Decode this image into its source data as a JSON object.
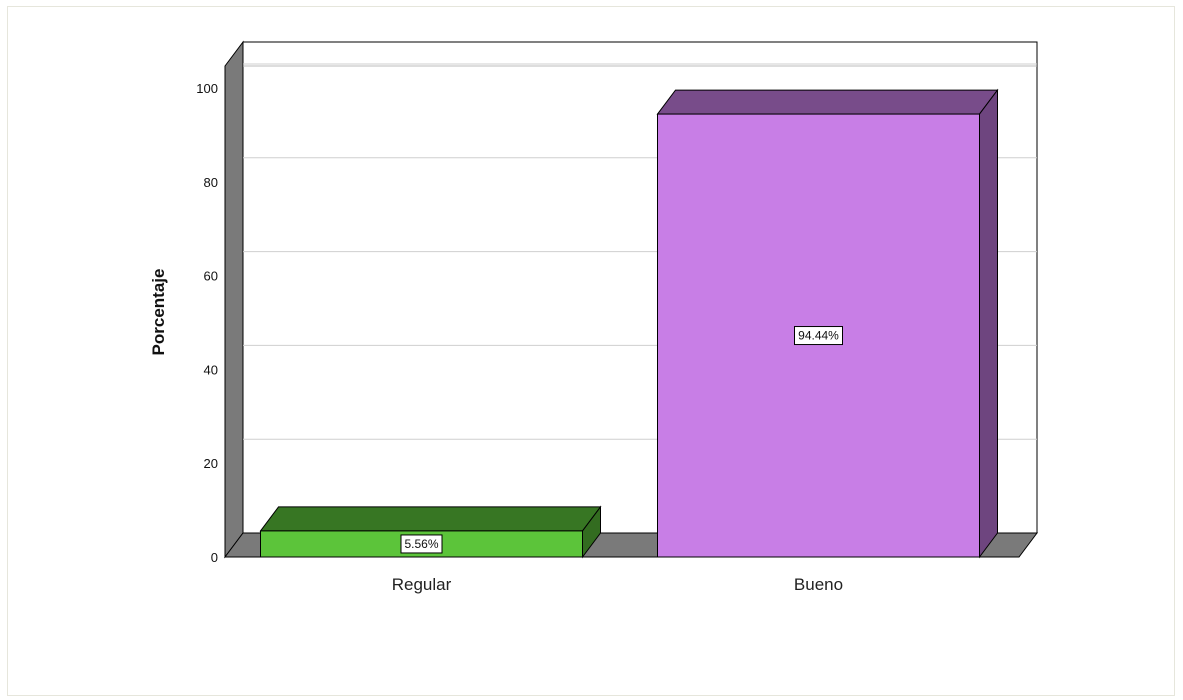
{
  "chart_data": {
    "type": "bar",
    "categories": [
      "Regular",
      "Bueno"
    ],
    "values": [
      5.56,
      94.44
    ],
    "data_labels": [
      "5.56%",
      "94.44%"
    ],
    "colors": [
      "#5cc43a",
      "#c87ee6"
    ],
    "ylabel": "Porcentaje",
    "ylim": [
      0,
      100
    ],
    "yticks": [
      0,
      20,
      40,
      60,
      80,
      100
    ],
    "grid": true,
    "style": "3d"
  }
}
